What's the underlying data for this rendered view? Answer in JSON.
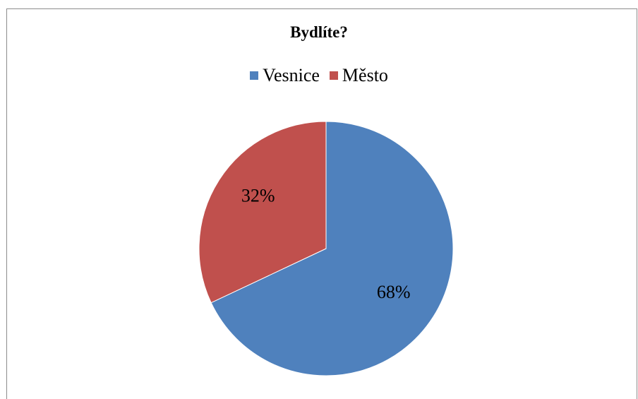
{
  "chart_data": {
    "type": "pie",
    "title": "Bydlíte?",
    "legend_position": "top",
    "slices": [
      {
        "label": "Vesnice",
        "value": 68,
        "display": "68%",
        "color": "#4f81bd"
      },
      {
        "label": "Město",
        "value": 32,
        "display": "32%",
        "color": "#c0504d"
      }
    ]
  }
}
